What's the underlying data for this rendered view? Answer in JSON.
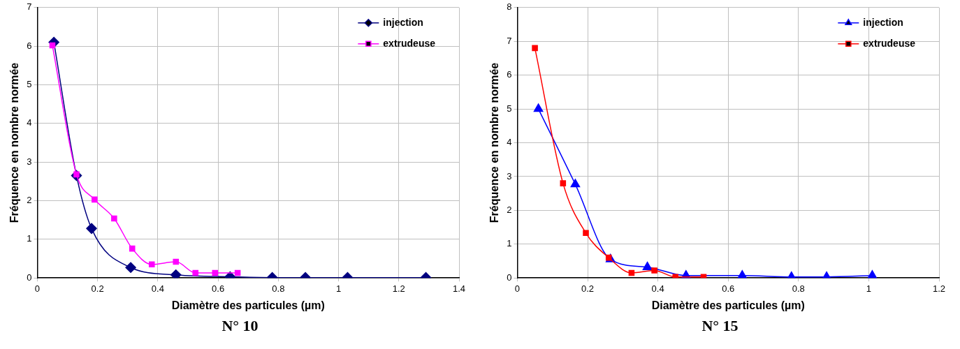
{
  "chart_data": [
    {
      "type": "line",
      "xlabel": "Diamètre des particules (µm)",
      "ylabel": "Fréquence en nombre normée",
      "annotations": [
        "N° 10"
      ],
      "xlim": [
        0,
        1.4
      ],
      "xticks": [
        0,
        0.2,
        0.4,
        0.6,
        0.8,
        1,
        1.2,
        1.4
      ],
      "ylim": [
        0,
        7
      ],
      "yticks": [
        0,
        1,
        2,
        3,
        4,
        5,
        6,
        7
      ],
      "grid": true,
      "legend": "top right",
      "series": [
        {
          "name": "injection",
          "color": "#000080",
          "marker": "diamond",
          "x": [
            0.055,
            0.13,
            0.18,
            0.31,
            0.46,
            0.64,
            0.78,
            0.89,
            1.03,
            1.29
          ],
          "values": [
            6.1,
            2.65,
            1.28,
            0.27,
            0.08,
            0.03,
            0.01,
            0.01,
            0.01,
            0.01
          ]
        },
        {
          "name": "extrudeuse",
          "color": "#ff00ff",
          "marker": "square",
          "x": [
            0.05,
            0.13,
            0.19,
            0.255,
            0.315,
            0.38,
            0.46,
            0.525,
            0.59,
            0.665
          ],
          "values": [
            6.02,
            2.68,
            2.03,
            1.54,
            0.76,
            0.35,
            0.42,
            0.13,
            0.13,
            0.13
          ]
        }
      ]
    },
    {
      "type": "line",
      "xlabel": "Diamètre des particules (µm)",
      "ylabel": "Fréquence en nombre normée",
      "annotations": [
        "N° 15"
      ],
      "xlim": [
        0,
        1.2
      ],
      "xticks": [
        0,
        0.2,
        0.4,
        0.6,
        0.8,
        1,
        1.2
      ],
      "ylim": [
        0,
        8
      ],
      "yticks": [
        0,
        1,
        2,
        3,
        4,
        5,
        6,
        7,
        8
      ],
      "grid": true,
      "legend": "top right",
      "series": [
        {
          "name": "injection",
          "color": "#0000ff",
          "marker": "triangle",
          "x": [
            0.06,
            0.165,
            0.265,
            0.37,
            0.48,
            0.64,
            0.78,
            0.88,
            1.01
          ],
          "values": [
            5.0,
            2.77,
            0.55,
            0.32,
            0.07,
            0.07,
            0.03,
            0.03,
            0.07
          ]
        },
        {
          "name": "extrudeuse",
          "color": "#ff0000",
          "marker": "square",
          "x": [
            0.05,
            0.13,
            0.195,
            0.26,
            0.325,
            0.39,
            0.45,
            0.53
          ],
          "values": [
            6.8,
            2.8,
            1.33,
            0.6,
            0.15,
            0.22,
            0.03,
            0.03
          ]
        }
      ]
    }
  ]
}
